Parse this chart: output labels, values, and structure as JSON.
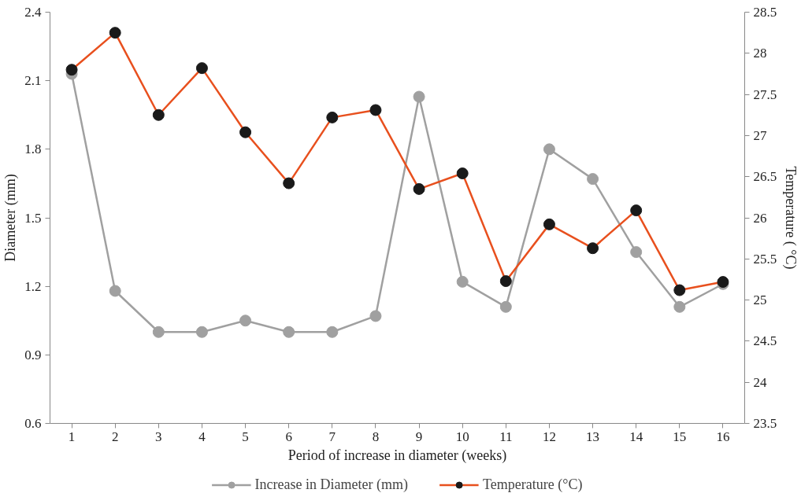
{
  "chart_data": {
    "type": "line",
    "xlabel": "Period of increase in diameter (weeks)",
    "ylabel": "Diameter (mm)",
    "y2label": "Temperature ( °C)",
    "x": [
      1,
      2,
      3,
      4,
      5,
      6,
      7,
      8,
      9,
      10,
      11,
      12,
      13,
      14,
      15,
      16
    ],
    "xlim": [
      0.5,
      16.5
    ],
    "xticks": [
      1,
      2,
      3,
      4,
      5,
      6,
      7,
      8,
      9,
      10,
      11,
      12,
      13,
      14,
      15,
      16
    ],
    "series": [
      {
        "name": "Increase in Diameter (mm)",
        "color": "#a0a0a0",
        "values": [
          2.13,
          1.18,
          1.0,
          1.0,
          1.05,
          1.0,
          1.0,
          1.07,
          2.03,
          1.22,
          1.11,
          1.8,
          1.67,
          1.35,
          1.11,
          1.21
        ]
      },
      {
        "name": "Temperature (°C)",
        "color": "#e8501e",
        "colors": [
          "#1a1a1a",
          "#1a1a1a",
          "#1a1a1a",
          "#1a1a1a",
          "#1a1a1a",
          "#1a1a1a",
          "#1a1a1a",
          "#1a1a1a",
          "#1a1a1a",
          "#1a1a1a",
          "#1a1a1a",
          "#1a1a1a",
          "#1a1a1a",
          "#1a1a1a",
          "#1a1a1a",
          "#1a1a1a"
        ],
        "axis": "y2",
        "values": [
          27.8,
          28.25,
          27.25,
          27.82,
          27.04,
          26.42,
          27.22,
          27.31,
          26.35,
          26.54,
          25.23,
          25.92,
          25.63,
          26.09,
          25.12,
          25.22
        ]
      }
    ],
    "ylim": [
      0.6,
      2.4
    ],
    "yticks": [
      0.6,
      0.9,
      1.2,
      1.5,
      1.8,
      2.1,
      2.4
    ],
    "y2lim": [
      23.5,
      28.5
    ],
    "y2ticks": [
      23.5,
      24,
      24.5,
      25,
      25.5,
      26,
      26.5,
      27,
      27.5,
      28,
      28.5
    ],
    "marker": "circle",
    "line_style": "solid",
    "grid": false,
    "legend": "bottom"
  }
}
